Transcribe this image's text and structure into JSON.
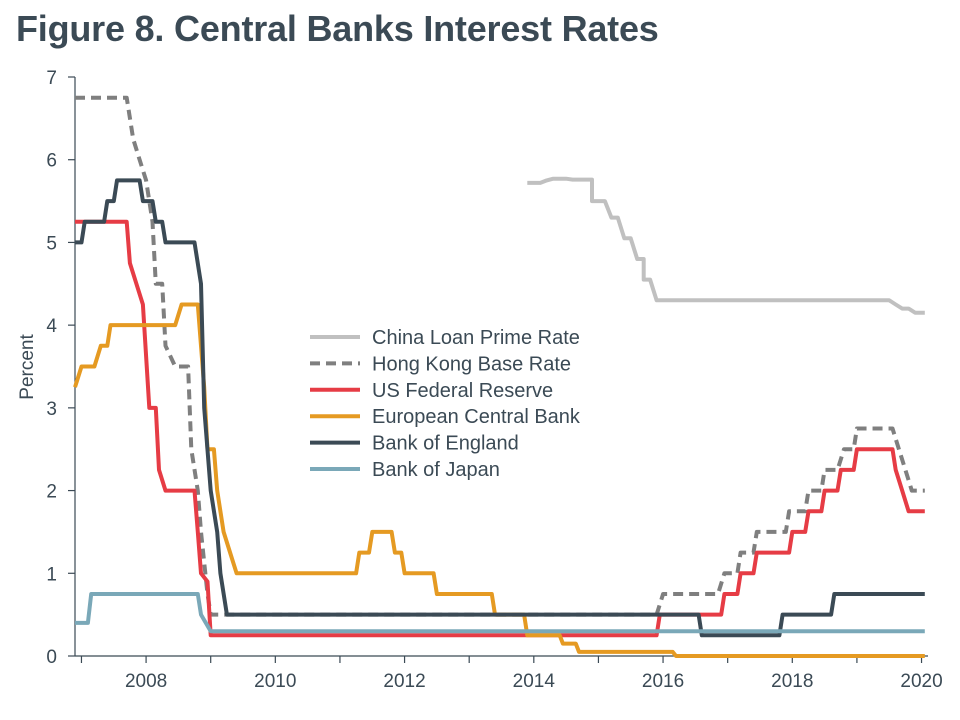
{
  "title": "Figure 8. Central Banks Interest Rates",
  "chart_data": {
    "type": "line",
    "title": "Figure 8. Central Banks Interest Rates",
    "xlabel": "",
    "ylabel": "Percent",
    "xlim": [
      2006.9,
      2020.1
    ],
    "ylim": [
      0,
      7
    ],
    "xticks": [
      2008,
      2010,
      2012,
      2014,
      2016,
      2018,
      2020
    ],
    "yticks": [
      0,
      1,
      2,
      3,
      4,
      5,
      6,
      7
    ],
    "grid": false,
    "legend_position": "center",
    "series": [
      {
        "name": "China Loan Prime Rate",
        "color": "#c0c0c0",
        "dash": false,
        "points": [
          [
            2013.9,
            5.72
          ],
          [
            2014.1,
            5.72
          ],
          [
            2014.2,
            5.75
          ],
          [
            2014.3,
            5.77
          ],
          [
            2014.5,
            5.77
          ],
          [
            2014.6,
            5.76
          ],
          [
            2014.9,
            5.76
          ],
          [
            2014.9,
            5.5
          ],
          [
            2015.1,
            5.5
          ],
          [
            2015.2,
            5.3
          ],
          [
            2015.3,
            5.3
          ],
          [
            2015.4,
            5.05
          ],
          [
            2015.5,
            5.05
          ],
          [
            2015.6,
            4.8
          ],
          [
            2015.7,
            4.8
          ],
          [
            2015.7,
            4.55
          ],
          [
            2015.8,
            4.55
          ],
          [
            2015.9,
            4.3
          ],
          [
            2019.5,
            4.3
          ],
          [
            2019.6,
            4.25
          ],
          [
            2019.7,
            4.2
          ],
          [
            2019.8,
            4.2
          ],
          [
            2019.9,
            4.15
          ],
          [
            2020.05,
            4.15
          ]
        ]
      },
      {
        "name": "Hong Kong Base Rate",
        "color": "#7f7f7f",
        "dash": true,
        "points": [
          [
            2006.9,
            6.75
          ],
          [
            2007.7,
            6.75
          ],
          [
            2007.8,
            6.25
          ],
          [
            2007.9,
            6.0
          ],
          [
            2008.0,
            5.75
          ],
          [
            2008.05,
            5.5
          ],
          [
            2008.1,
            5.25
          ],
          [
            2008.15,
            4.5
          ],
          [
            2008.25,
            4.5
          ],
          [
            2008.3,
            3.75
          ],
          [
            2008.45,
            3.5
          ],
          [
            2008.65,
            3.5
          ],
          [
            2008.7,
            2.5
          ],
          [
            2008.8,
            2.0
          ],
          [
            2008.85,
            1.5
          ],
          [
            2008.95,
            0.75
          ],
          [
            2009.0,
            0.5
          ],
          [
            2015.9,
            0.5
          ],
          [
            2016.0,
            0.75
          ],
          [
            2016.85,
            0.75
          ],
          [
            2016.95,
            1.0
          ],
          [
            2017.15,
            1.0
          ],
          [
            2017.2,
            1.25
          ],
          [
            2017.4,
            1.25
          ],
          [
            2017.45,
            1.5
          ],
          [
            2017.9,
            1.5
          ],
          [
            2017.95,
            1.75
          ],
          [
            2018.2,
            1.75
          ],
          [
            2018.25,
            2.0
          ],
          [
            2018.45,
            2.0
          ],
          [
            2018.5,
            2.25
          ],
          [
            2018.7,
            2.25
          ],
          [
            2018.8,
            2.5
          ],
          [
            2018.95,
            2.5
          ],
          [
            2019.0,
            2.75
          ],
          [
            2019.55,
            2.75
          ],
          [
            2019.65,
            2.5
          ],
          [
            2019.75,
            2.25
          ],
          [
            2019.85,
            2.0
          ],
          [
            2020.05,
            2.0
          ]
        ]
      },
      {
        "name": "US Federal Reserve",
        "color": "#e63c45",
        "dash": false,
        "points": [
          [
            2006.9,
            5.25
          ],
          [
            2007.7,
            5.25
          ],
          [
            2007.75,
            4.75
          ],
          [
            2007.85,
            4.5
          ],
          [
            2007.95,
            4.25
          ],
          [
            2008.05,
            3.0
          ],
          [
            2008.15,
            3.0
          ],
          [
            2008.2,
            2.25
          ],
          [
            2008.3,
            2.0
          ],
          [
            2008.75,
            2.0
          ],
          [
            2008.8,
            1.5
          ],
          [
            2008.85,
            1.0
          ],
          [
            2008.95,
            0.9
          ],
          [
            2009.0,
            0.25
          ],
          [
            2015.9,
            0.25
          ],
          [
            2015.95,
            0.5
          ],
          [
            2016.9,
            0.5
          ],
          [
            2016.95,
            0.75
          ],
          [
            2017.15,
            0.75
          ],
          [
            2017.2,
            1.0
          ],
          [
            2017.4,
            1.0
          ],
          [
            2017.45,
            1.25
          ],
          [
            2017.95,
            1.25
          ],
          [
            2018.0,
            1.5
          ],
          [
            2018.2,
            1.5
          ],
          [
            2018.25,
            1.75
          ],
          [
            2018.45,
            1.75
          ],
          [
            2018.5,
            2.0
          ],
          [
            2018.7,
            2.0
          ],
          [
            2018.75,
            2.25
          ],
          [
            2018.95,
            2.25
          ],
          [
            2019.0,
            2.5
          ],
          [
            2019.55,
            2.5
          ],
          [
            2019.6,
            2.25
          ],
          [
            2019.7,
            2.0
          ],
          [
            2019.8,
            1.75
          ],
          [
            2020.05,
            1.75
          ]
        ]
      },
      {
        "name": "European Central Bank",
        "color": "#e59a22",
        "dash": false,
        "points": [
          [
            2006.9,
            3.25
          ],
          [
            2007.0,
            3.5
          ],
          [
            2007.2,
            3.5
          ],
          [
            2007.3,
            3.75
          ],
          [
            2007.4,
            3.75
          ],
          [
            2007.45,
            4.0
          ],
          [
            2008.45,
            4.0
          ],
          [
            2008.55,
            4.25
          ],
          [
            2008.8,
            4.25
          ],
          [
            2008.85,
            3.75
          ],
          [
            2008.9,
            3.25
          ],
          [
            2008.95,
            2.5
          ],
          [
            2009.05,
            2.5
          ],
          [
            2009.1,
            2.0
          ],
          [
            2009.2,
            1.5
          ],
          [
            2009.3,
            1.25
          ],
          [
            2009.4,
            1.0
          ],
          [
            2011.25,
            1.0
          ],
          [
            2011.3,
            1.25
          ],
          [
            2011.45,
            1.25
          ],
          [
            2011.5,
            1.5
          ],
          [
            2011.8,
            1.5
          ],
          [
            2011.85,
            1.25
          ],
          [
            2011.95,
            1.25
          ],
          [
            2012.0,
            1.0
          ],
          [
            2012.45,
            1.0
          ],
          [
            2012.5,
            0.75
          ],
          [
            2013.35,
            0.75
          ],
          [
            2013.4,
            0.5
          ],
          [
            2013.85,
            0.5
          ],
          [
            2013.9,
            0.25
          ],
          [
            2014.4,
            0.25
          ],
          [
            2014.45,
            0.15
          ],
          [
            2014.65,
            0.15
          ],
          [
            2014.7,
            0.05
          ],
          [
            2016.15,
            0.05
          ],
          [
            2016.2,
            0.0
          ],
          [
            2020.05,
            0.0
          ]
        ]
      },
      {
        "name": "Bank of England",
        "color": "#3b4a55",
        "dash": false,
        "points": [
          [
            2006.9,
            5.0
          ],
          [
            2007.0,
            5.0
          ],
          [
            2007.05,
            5.25
          ],
          [
            2007.35,
            5.25
          ],
          [
            2007.4,
            5.5
          ],
          [
            2007.5,
            5.5
          ],
          [
            2007.55,
            5.75
          ],
          [
            2007.9,
            5.75
          ],
          [
            2007.95,
            5.5
          ],
          [
            2008.1,
            5.5
          ],
          [
            2008.15,
            5.25
          ],
          [
            2008.25,
            5.25
          ],
          [
            2008.3,
            5.0
          ],
          [
            2008.75,
            5.0
          ],
          [
            2008.85,
            4.5
          ],
          [
            2008.9,
            3.0
          ],
          [
            2009.0,
            2.0
          ],
          [
            2009.1,
            1.5
          ],
          [
            2009.15,
            1.0
          ],
          [
            2009.25,
            0.5
          ],
          [
            2016.55,
            0.5
          ],
          [
            2016.6,
            0.25
          ],
          [
            2017.8,
            0.25
          ],
          [
            2017.85,
            0.5
          ],
          [
            2018.6,
            0.5
          ],
          [
            2018.65,
            0.75
          ],
          [
            2020.05,
            0.75
          ]
        ]
      },
      {
        "name": "Bank of Japan",
        "color": "#7aa8b8",
        "dash": false,
        "points": [
          [
            2006.9,
            0.4
          ],
          [
            2007.1,
            0.4
          ],
          [
            2007.15,
            0.75
          ],
          [
            2008.8,
            0.75
          ],
          [
            2008.85,
            0.5
          ],
          [
            2009.0,
            0.3
          ],
          [
            2020.05,
            0.3
          ]
        ]
      }
    ]
  }
}
